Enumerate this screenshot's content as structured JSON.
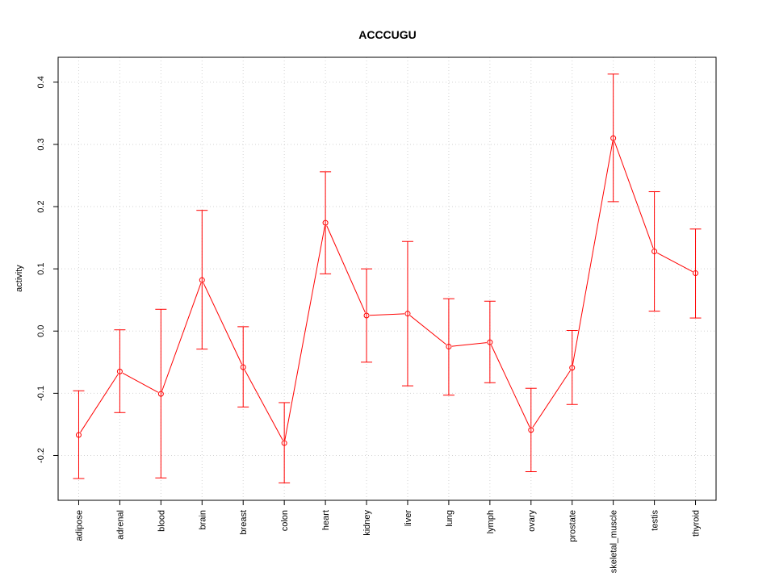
{
  "chart_data": {
    "type": "line",
    "title": "ACCCUGU",
    "xlabel": "",
    "ylabel": "activity",
    "categories": [
      "adipose",
      "adrenal",
      "blood",
      "brain",
      "breast",
      "colon",
      "heart",
      "kidney",
      "liver",
      "lung",
      "lymph",
      "ovary",
      "prostate",
      "skeletal_muscle",
      "testis",
      "thyroid"
    ],
    "series": [
      {
        "values": [
          -0.167,
          -0.065,
          -0.101,
          0.082,
          -0.058,
          -0.18,
          0.174,
          0.025,
          0.028,
          -0.025,
          -0.018,
          -0.159,
          -0.059,
          0.31,
          0.128,
          0.093
        ],
        "upper": [
          -0.096,
          0.002,
          0.035,
          0.194,
          0.007,
          -0.115,
          0.256,
          0.1,
          0.144,
          0.052,
          0.048,
          -0.092,
          0.001,
          0.413,
          0.224,
          0.164
        ],
        "lower": [
          -0.237,
          -0.131,
          -0.236,
          -0.029,
          -0.122,
          -0.244,
          0.092,
          -0.05,
          -0.088,
          -0.103,
          -0.083,
          -0.226,
          -0.118,
          0.208,
          0.032,
          0.021
        ]
      }
    ],
    "yticks": [
      -0.2,
      -0.1,
      0.0,
      0.1,
      0.2,
      0.3,
      0.4
    ],
    "ytick_labels": [
      "-0.2",
      "-0.1",
      "0.0",
      "0.1",
      "0.2",
      "0.3",
      "0.4"
    ],
    "ylim": [
      -0.272,
      0.44
    ],
    "grid": true,
    "colors": {
      "series": "#ff0000",
      "grid": "#d3d3d3",
      "axis": "#000000"
    }
  }
}
